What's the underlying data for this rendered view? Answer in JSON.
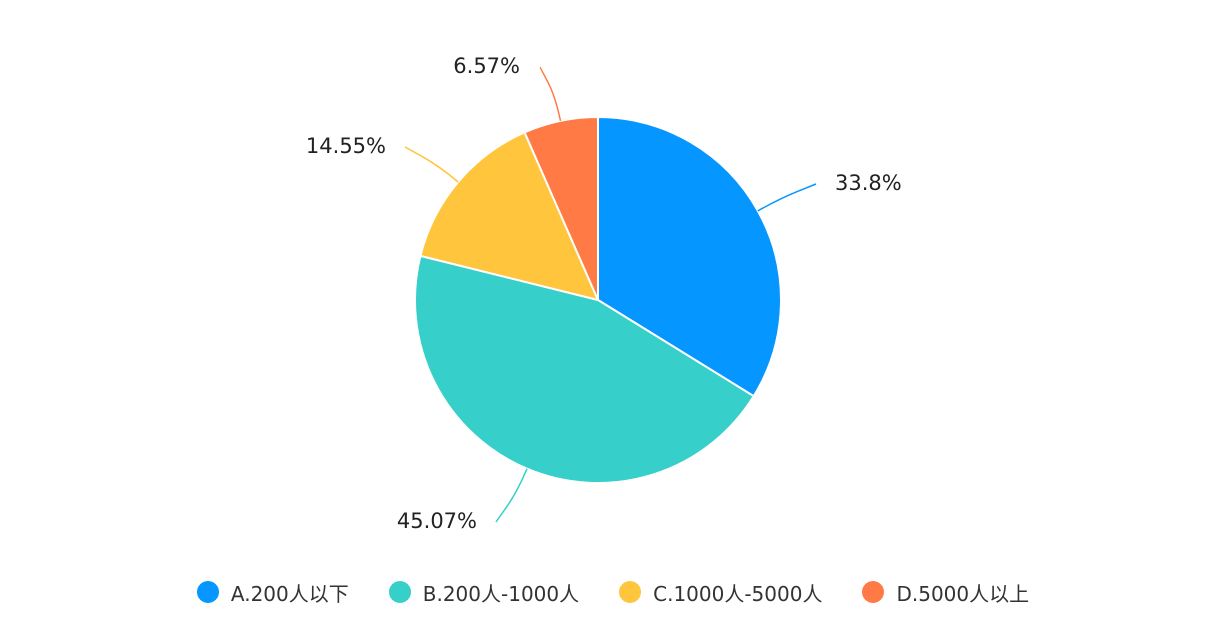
{
  "chart_data": {
    "type": "pie",
    "categories": [
      "A.200人以下",
      "B.200人-1000人",
      "C.1000人-5000人",
      "D.5000人以上"
    ],
    "values": [
      33.8,
      45.07,
      14.55,
      6.57
    ],
    "labels": [
      "33.8%",
      "45.07%",
      "14.55%",
      "6.57%"
    ],
    "colors": [
      "#0696ff",
      "#36cfc9",
      "#ffc53d",
      "#ff7a45"
    ],
    "legend_position": "bottom",
    "start_angle": "12 o'clock",
    "direction": "clockwise"
  }
}
